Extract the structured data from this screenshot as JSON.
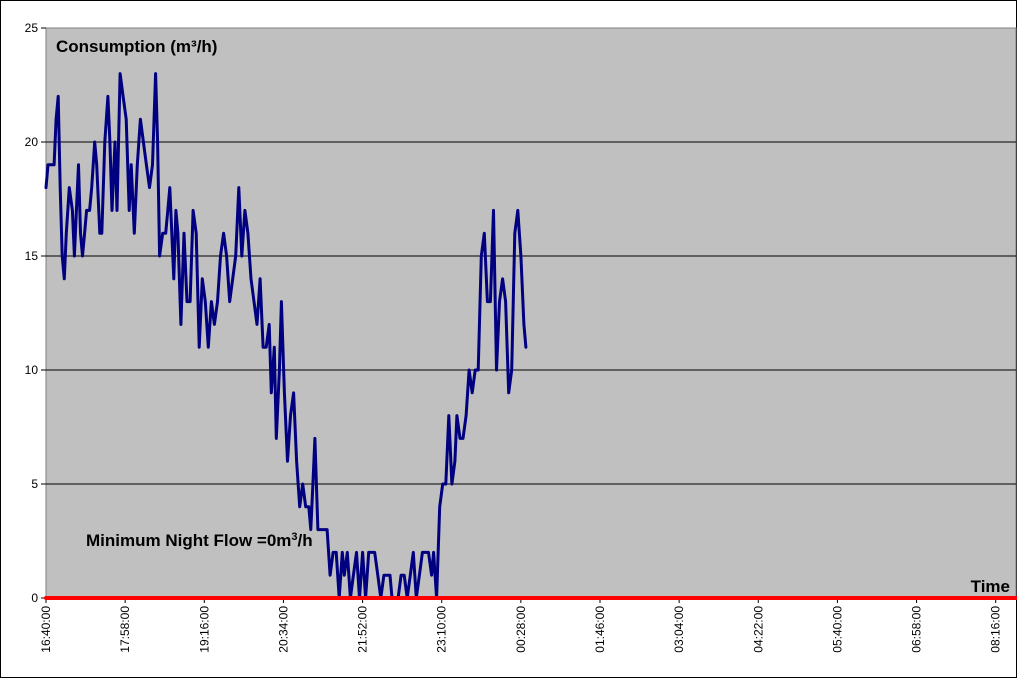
{
  "chart_data": {
    "type": "line",
    "title": "",
    "ylabel": "Consumption (m³/h)",
    "xlabel": "Time",
    "annotation": {
      "prefix": "Minimum Night Flow =0m",
      "sup": "3",
      "suffix": "/h"
    },
    "ylim": [
      0,
      25
    ],
    "yticks": [
      0,
      5,
      10,
      15,
      20,
      25
    ],
    "grid": true,
    "x_labels": [
      "16:40:00",
      "17:58:00",
      "19:16:00",
      "20:34:00",
      "21:52:00",
      "23:10:00",
      "00:28:00",
      "01:46:00",
      "03:04:00",
      "04:22:00",
      "05:40:00",
      "06:58:00",
      "08:16:00"
    ],
    "x_minutes_start": 1000,
    "x_minutes_end": 1956,
    "label_interval_minutes": 78,
    "series": [
      {
        "color": "#000080",
        "points": [
          [
            1000,
            18
          ],
          [
            1002,
            19
          ],
          [
            1005,
            19
          ],
          [
            1008,
            19
          ],
          [
            1010,
            21
          ],
          [
            1012,
            22
          ],
          [
            1014,
            18
          ],
          [
            1016,
            15
          ],
          [
            1018,
            14
          ],
          [
            1020,
            16
          ],
          [
            1023,
            18
          ],
          [
            1026,
            17
          ],
          [
            1028,
            15
          ],
          [
            1030,
            17
          ],
          [
            1032,
            19
          ],
          [
            1034,
            16
          ],
          [
            1036,
            15
          ],
          [
            1038,
            16
          ],
          [
            1040,
            17
          ],
          [
            1043,
            17
          ],
          [
            1045,
            18
          ],
          [
            1048,
            20
          ],
          [
            1050,
            19
          ],
          [
            1053,
            16
          ],
          [
            1055,
            16
          ],
          [
            1058,
            20
          ],
          [
            1061,
            22
          ],
          [
            1063,
            20
          ],
          [
            1065,
            17
          ],
          [
            1068,
            20
          ],
          [
            1070,
            17
          ],
          [
            1073,
            23
          ],
          [
            1076,
            22
          ],
          [
            1079,
            21
          ],
          [
            1082,
            17
          ],
          [
            1084,
            19
          ],
          [
            1087,
            16
          ],
          [
            1090,
            19
          ],
          [
            1093,
            21
          ],
          [
            1096,
            20
          ],
          [
            1099,
            19
          ],
          [
            1102,
            18
          ],
          [
            1105,
            19
          ],
          [
            1108,
            23
          ],
          [
            1110,
            20
          ],
          [
            1112,
            15
          ],
          [
            1115,
            16
          ],
          [
            1118,
            16
          ],
          [
            1120,
            17
          ],
          [
            1122,
            18
          ],
          [
            1124,
            16
          ],
          [
            1126,
            14
          ],
          [
            1128,
            17
          ],
          [
            1130,
            16
          ],
          [
            1133,
            12
          ],
          [
            1136,
            16
          ],
          [
            1139,
            13
          ],
          [
            1142,
            13
          ],
          [
            1145,
            17
          ],
          [
            1148,
            16
          ],
          [
            1151,
            11
          ],
          [
            1154,
            14
          ],
          [
            1157,
            13
          ],
          [
            1160,
            11
          ],
          [
            1163,
            13
          ],
          [
            1166,
            12
          ],
          [
            1169,
            13
          ],
          [
            1172,
            15
          ],
          [
            1175,
            16
          ],
          [
            1178,
            15
          ],
          [
            1181,
            13
          ],
          [
            1184,
            14
          ],
          [
            1187,
            15
          ],
          [
            1190,
            18
          ],
          [
            1193,
            15
          ],
          [
            1196,
            17
          ],
          [
            1199,
            16
          ],
          [
            1202,
            14
          ],
          [
            1205,
            13
          ],
          [
            1208,
            12
          ],
          [
            1211,
            14
          ],
          [
            1214,
            11
          ],
          [
            1217,
            11
          ],
          [
            1220,
            12
          ],
          [
            1222,
            9
          ],
          [
            1225,
            11
          ],
          [
            1227,
            7
          ],
          [
            1230,
            10
          ],
          [
            1232,
            13
          ],
          [
            1235,
            9
          ],
          [
            1238,
            6
          ],
          [
            1241,
            8
          ],
          [
            1244,
            9
          ],
          [
            1247,
            6
          ],
          [
            1250,
            4
          ],
          [
            1253,
            5
          ],
          [
            1256,
            4
          ],
          [
            1259,
            4
          ],
          [
            1261,
            3
          ],
          [
            1263,
            5
          ],
          [
            1265,
            7
          ],
          [
            1268,
            3
          ],
          [
            1271,
            3
          ],
          [
            1274,
            3
          ],
          [
            1277,
            3
          ],
          [
            1280,
            1
          ],
          [
            1283,
            2
          ],
          [
            1286,
            2
          ],
          [
            1289,
            0
          ],
          [
            1292,
            2
          ],
          [
            1294,
            1
          ],
          [
            1297,
            2
          ],
          [
            1300,
            0
          ],
          [
            1303,
            1
          ],
          [
            1306,
            2
          ],
          [
            1309,
            0
          ],
          [
            1312,
            2
          ],
          [
            1315,
            0
          ],
          [
            1318,
            2
          ],
          [
            1321,
            2
          ],
          [
            1324,
            2
          ],
          [
            1327,
            1
          ],
          [
            1330,
            0
          ],
          [
            1333,
            1
          ],
          [
            1336,
            1
          ],
          [
            1339,
            1
          ],
          [
            1341,
            0
          ],
          [
            1344,
            0
          ],
          [
            1347,
            0
          ],
          [
            1350,
            1
          ],
          [
            1353,
            1
          ],
          [
            1356,
            0
          ],
          [
            1359,
            1
          ],
          [
            1362,
            2
          ],
          [
            1365,
            0
          ],
          [
            1368,
            1
          ],
          [
            1371,
            2
          ],
          [
            1374,
            2
          ],
          [
            1377,
            2
          ],
          [
            1380,
            1
          ],
          [
            1382,
            2
          ],
          [
            1385,
            0
          ],
          [
            1388,
            4
          ],
          [
            1391,
            5
          ],
          [
            1394,
            5
          ],
          [
            1397,
            8
          ],
          [
            1400,
            5
          ],
          [
            1403,
            6
          ],
          [
            1405,
            8
          ],
          [
            1408,
            7
          ],
          [
            1411,
            7
          ],
          [
            1414,
            8
          ],
          [
            1417,
            10
          ],
          [
            1420,
            9
          ],
          [
            1423,
            10
          ],
          [
            1426,
            10
          ],
          [
            1429,
            15
          ],
          [
            1432,
            16
          ],
          [
            1435,
            13
          ],
          [
            1438,
            13
          ],
          [
            1441,
            17
          ],
          [
            1444,
            10
          ],
          [
            1447,
            13
          ],
          [
            1450,
            14
          ],
          [
            1453,
            13
          ],
          [
            1456,
            9
          ],
          [
            1459,
            10
          ],
          [
            1462,
            16
          ],
          [
            1465,
            17
          ],
          [
            1468,
            15
          ],
          [
            1471,
            12
          ],
          [
            1473,
            11
          ]
        ]
      },
      {
        "color": "#ff0000",
        "points": [
          [
            1000,
            0
          ],
          [
            1956,
            0
          ]
        ]
      }
    ]
  }
}
